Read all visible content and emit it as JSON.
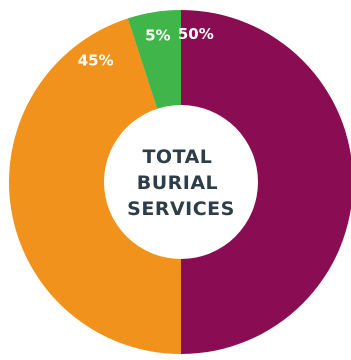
{
  "chart_data": {
    "type": "pie",
    "variant": "donut",
    "title": "",
    "center_text": [
      "TOTAL",
      "BURIAL",
      "SERVICES"
    ],
    "slices": [
      {
        "value": 50,
        "label": "50%",
        "color": "#8a0c52"
      },
      {
        "value": 45,
        "label": "45%",
        "color": "#f0921c"
      },
      {
        "value": 5,
        "label": "5%",
        "color": "#3fb54a"
      }
    ],
    "start": "top",
    "direction": "clockwise",
    "legend": "none"
  },
  "colors": {
    "background": "#ffffff",
    "hole": "#ffffff",
    "label_text": "#ffffff",
    "center_text": "#2d3e48"
  }
}
